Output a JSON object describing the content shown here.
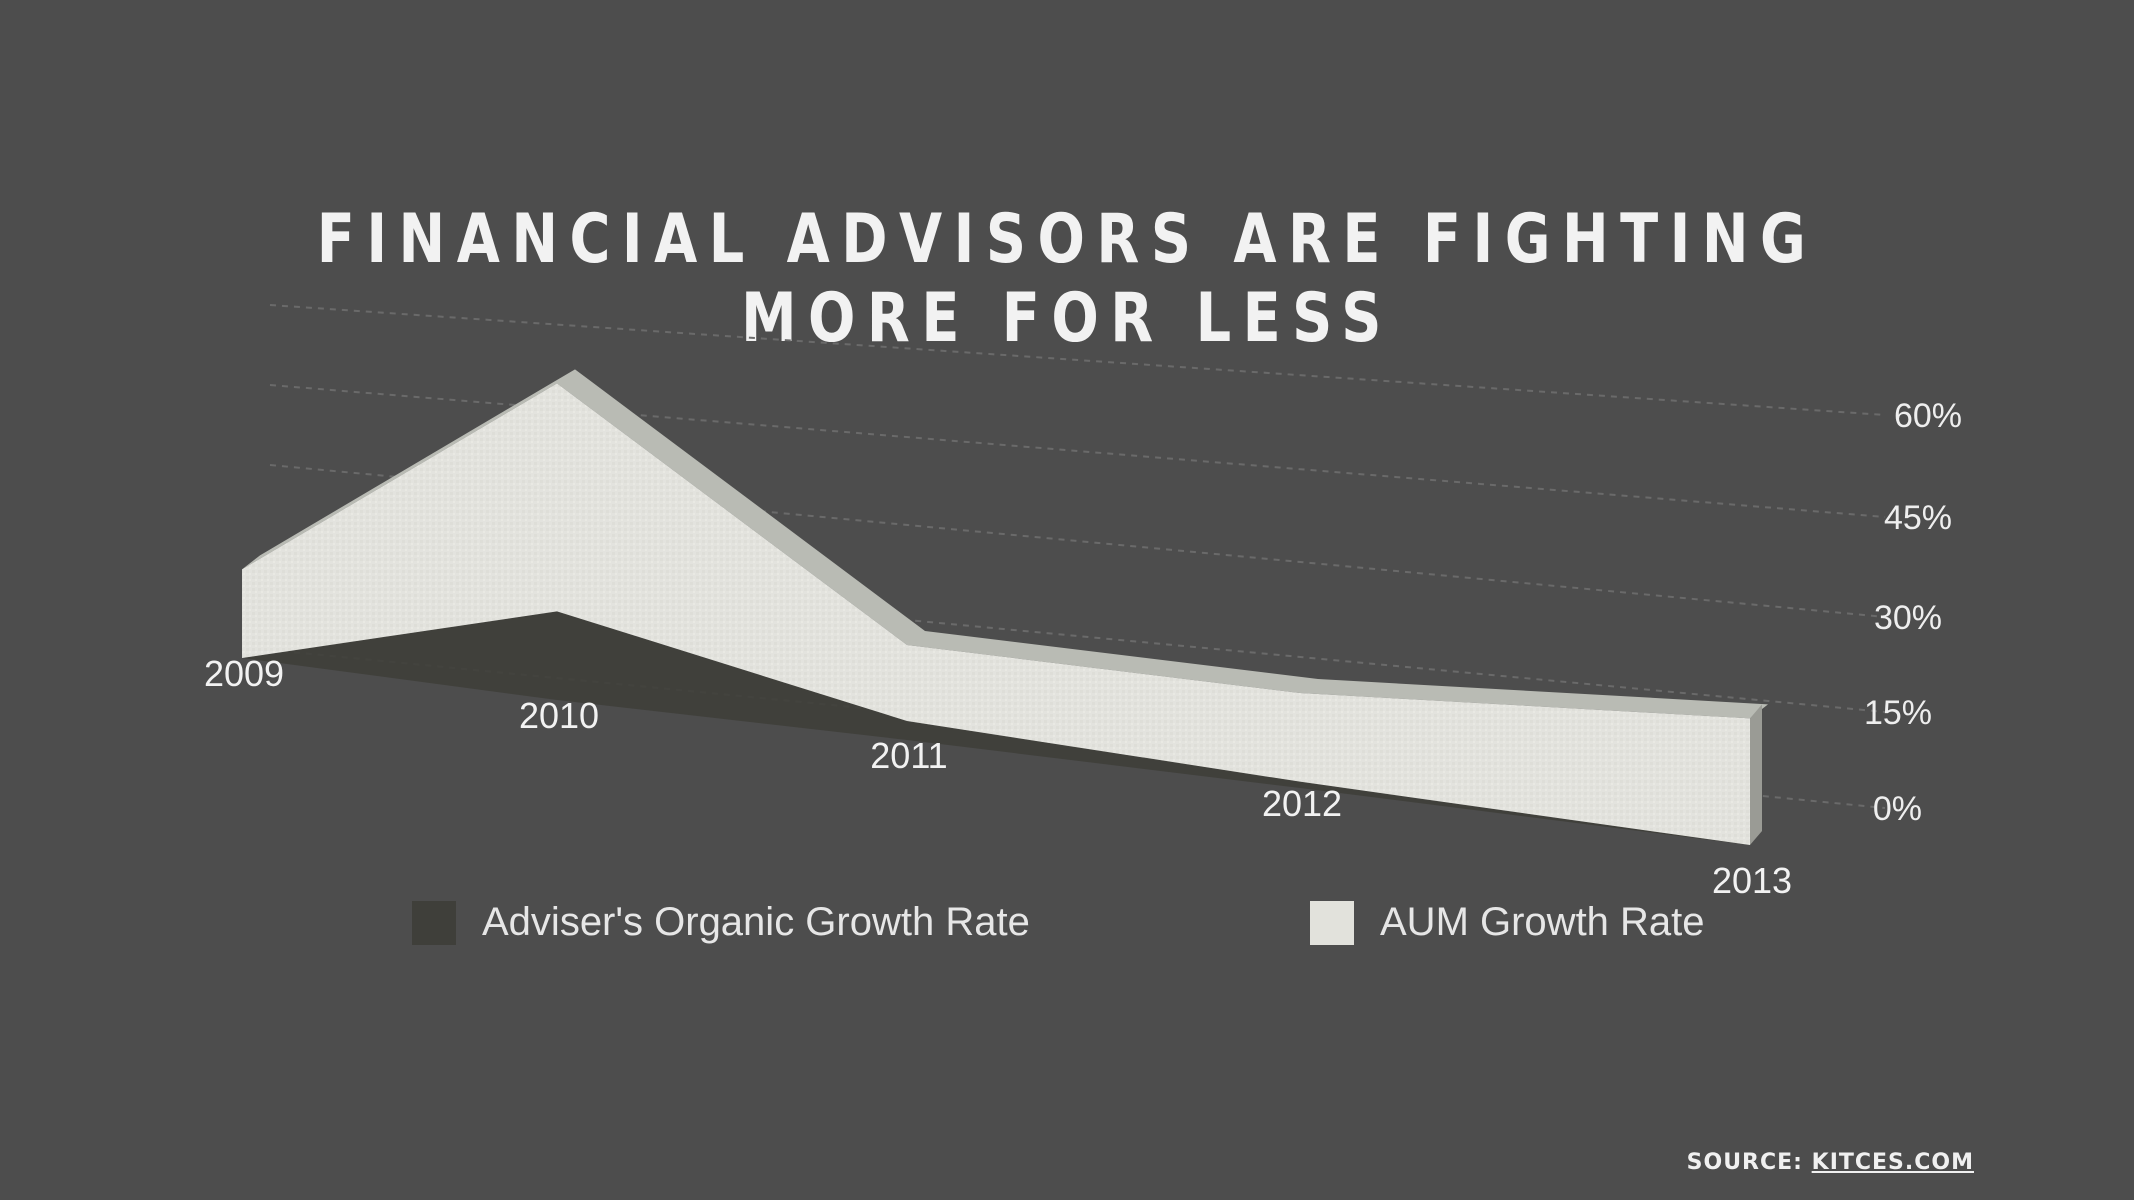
{
  "title": "FINANCIAL ADVISORS ARE FIGHTING MORE FOR LESS",
  "source": {
    "prefix": "SOURCE:",
    "link": "KITCES.COM"
  },
  "colors": {
    "background": "#4d4d4d",
    "organic": "#3f3f3a",
    "aum": "#e2e2dc"
  },
  "chart_data": {
    "type": "area",
    "categories": [
      "2009",
      "2010",
      "2011",
      "2012",
      "2013"
    ],
    "yticks": [
      "0%",
      "15%",
      "30%",
      "45%",
      "60%"
    ],
    "ylim": [
      0,
      60
    ],
    "grid": true,
    "legend_position": "bottom",
    "series": [
      {
        "name": "Adviser's Organic Growth Rate",
        "values": [
          0,
          14,
          3,
          1,
          0
        ]
      },
      {
        "name": "AUM Growth Rate",
        "values": [
          14,
          50,
          15,
          15,
          20
        ]
      }
    ]
  }
}
